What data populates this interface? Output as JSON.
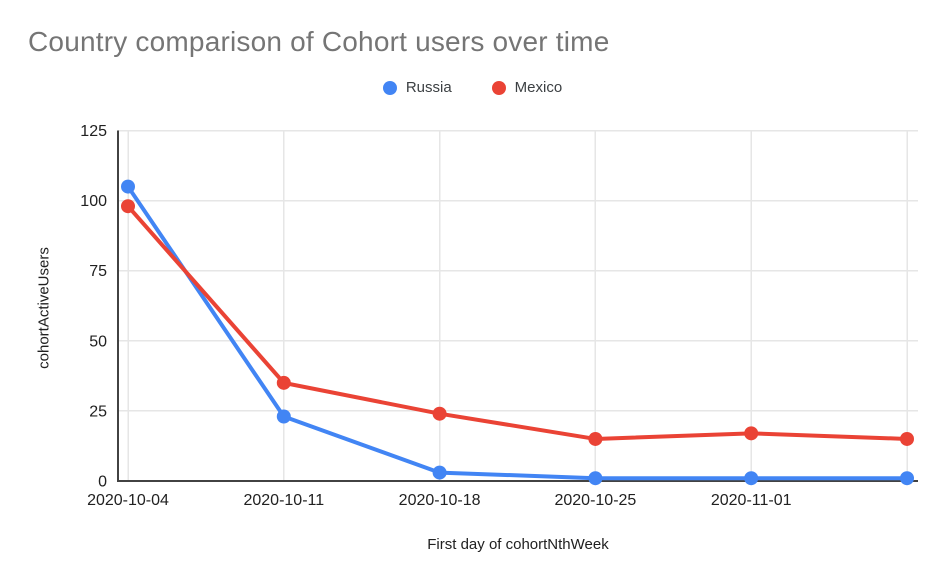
{
  "page": {
    "background": "#ffffff"
  },
  "chart_data": {
    "type": "line",
    "title": "Country comparison of Cohort users over time",
    "xlabel": "First day of cohortNthWeek",
    "ylabel": "cohortActiveUsers",
    "x_tick_labels": [
      "2020-10-04",
      "2020-10-11",
      "2020-10-18",
      "2020-10-25",
      "2020-11-01",
      ""
    ],
    "yticks": [
      0,
      25,
      50,
      75,
      100,
      125
    ],
    "ylim": [
      0,
      125
    ],
    "grid": true,
    "legend_position": "top-center",
    "series": [
      {
        "name": "Russia",
        "color": "#4285F4",
        "values": [
          105,
          23,
          3,
          1,
          1,
          1
        ]
      },
      {
        "name": "Mexico",
        "color": "#EA4335",
        "values": [
          98,
          35,
          24,
          15,
          17,
          15
        ]
      }
    ],
    "style": {
      "title_color": "#757575",
      "axis_text_color": "#212121",
      "legend_text_color": "#3c4043",
      "gridline_color": "#e6e6e6",
      "axis_line_color": "#424242"
    }
  }
}
